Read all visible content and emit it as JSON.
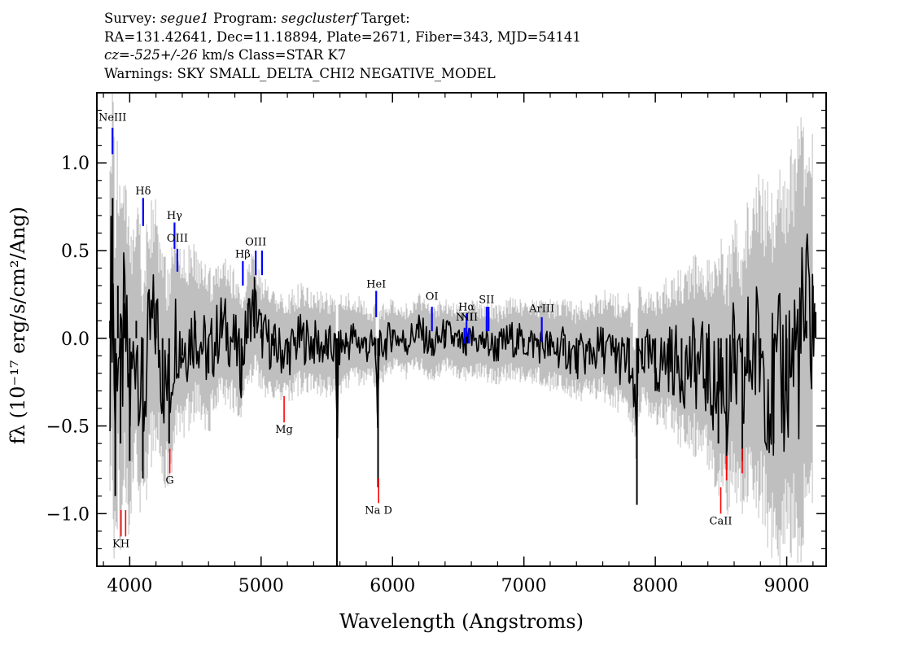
{
  "header": {
    "survey_label": "Survey:",
    "survey": "segue1",
    "program_label": "Program:",
    "program": "segclusterf",
    "target_label": "Target:",
    "line2": "RA=131.42641, Dec=11.18894, Plate=2671, Fiber=343, MJD=54141",
    "cz_label": "cz=",
    "cz_value": "-525+/-26",
    "cz_units": "km/s Class=STAR K7",
    "warnings": "Warnings: SKY SMALL_DELTA_CHI2 NEGATIVE_MODEL"
  },
  "chart_data": {
    "type": "line",
    "xlabel": "Wavelength (Angstroms)",
    "ylabel": "fλ (10⁻¹⁷ erg/s/cm²/Ang)",
    "xlim": [
      3750,
      9300
    ],
    "ylim": [
      -1.3,
      1.4
    ],
    "xticks": [
      4000,
      5000,
      6000,
      7000,
      8000,
      9000
    ],
    "xtick_labels": [
      "4000",
      "5000",
      "6000",
      "7000",
      "8000",
      "9000"
    ],
    "yticks": [
      1.0,
      0.5,
      0.0,
      -0.5,
      -1.0
    ],
    "ytick_labels": [
      "1.0",
      "0.5",
      "0.0",
      "−0.5",
      "−1.0"
    ],
    "grid": false,
    "series": [
      {
        "color": "#000000",
        "role": "flux",
        "x": [
          3850,
          3870,
          3890,
          3910,
          3930,
          3960,
          4000,
          4050,
          4100,
          4150,
          4200,
          4250,
          4300,
          4350,
          4400,
          4500,
          4600,
          4700,
          4800,
          4850,
          4900,
          4950,
          5000,
          5100,
          5200,
          5300,
          5400,
          5500,
          5570,
          5577,
          5590,
          5650,
          5700,
          5800,
          5870,
          5890,
          5900,
          5950,
          6000,
          6100,
          6200,
          6300,
          6400,
          6500,
          6560,
          6600,
          6700,
          6800,
          6900,
          7000,
          7100,
          7200,
          7300,
          7400,
          7500,
          7600,
          7700,
          7800,
          7860,
          7870,
          7900,
          8000,
          8100,
          8200,
          8300,
          8400,
          8480,
          8500,
          8542,
          8600,
          8662,
          8700,
          8800,
          8900,
          9000,
          9100,
          9150,
          9200,
          9220
        ],
        "y": [
          0.1,
          0.8,
          -0.9,
          0.3,
          -0.6,
          0.2,
          -0.7,
          0.1,
          -0.8,
          0.0,
          0.2,
          -0.4,
          -0.6,
          0.1,
          -0.1,
          0.1,
          -0.2,
          0.15,
          -0.05,
          -0.3,
          0.2,
          0.35,
          0.05,
          -0.1,
          -0.15,
          0.0,
          -0.05,
          -0.1,
          -0.1,
          -1.3,
          -0.1,
          -0.05,
          0.0,
          -0.08,
          -0.1,
          -0.85,
          -0.1,
          -0.05,
          0.05,
          -0.05,
          0.1,
          -0.1,
          0.05,
          -0.05,
          -0.1,
          0.0,
          -0.05,
          -0.1,
          0.0,
          -0.05,
          -0.05,
          -0.1,
          -0.1,
          -0.2,
          -0.15,
          -0.1,
          -0.2,
          -0.25,
          -0.95,
          -0.2,
          -0.15,
          -0.3,
          -0.2,
          -0.3,
          -0.25,
          -0.35,
          -0.6,
          -0.3,
          -0.75,
          -0.2,
          -0.7,
          -0.2,
          -0.1,
          -0.6,
          -0.3,
          -0.05,
          0.1,
          0.3,
          0.15
        ]
      },
      {
        "color": "#bfbfbf",
        "role": "error",
        "x": [
          3850,
          4000,
          4500,
          5000,
          5500,
          6000,
          6500,
          7000,
          7500,
          8000,
          8500,
          9000,
          9200
        ],
        "y": [
          1.3,
          0.9,
          0.5,
          0.35,
          0.3,
          0.22,
          0.22,
          0.24,
          0.3,
          0.4,
          0.7,
          1.2,
          1.4
        ]
      }
    ],
    "annotations": {
      "emission": [
        {
          "label": "NeIII",
          "x": 3869,
          "ymin": 1.05,
          "ymax": 1.2,
          "label_y": 1.24
        },
        {
          "label": "Hδ",
          "x": 4102,
          "ymin": 0.64,
          "ymax": 0.8,
          "label_y": 0.82
        },
        {
          "label": "Hγ",
          "x": 4341,
          "ymin": 0.51,
          "ymax": 0.66,
          "label_y": 0.68
        },
        {
          "label": "OIII",
          "x": 4363,
          "ymin": 0.38,
          "ymax": 0.51,
          "label_y": 0.55
        },
        {
          "label": "Hβ",
          "x": 4861,
          "ymin": 0.3,
          "ymax": 0.44,
          "label_y": 0.46
        },
        {
          "label": "OIII",
          "x": 4959,
          "ymin": 0.36,
          "ymax": 0.5,
          "label_y": 0.53
        },
        {
          "label": "",
          "x": 5007,
          "ymin": 0.36,
          "ymax": 0.5,
          "label_y": 0.53
        },
        {
          "label": "HeI",
          "x": 5876,
          "ymin": 0.12,
          "ymax": 0.27,
          "label_y": 0.29
        },
        {
          "label": "OI",
          "x": 6300,
          "ymin": 0.04,
          "ymax": 0.18,
          "label_y": 0.22
        },
        {
          "label": "NII",
          "x": 6548,
          "ymin": -0.03,
          "ymax": 0.06,
          "label_y": 0.1
        },
        {
          "label": "Hα",
          "x": 6563,
          "ymin": 0.01,
          "ymax": 0.14,
          "label_y": 0.16
        },
        {
          "label": "NII",
          "x": 6583,
          "ymin": -0.03,
          "ymax": 0.06,
          "label_y": 0.1
        },
        {
          "label": "SII",
          "x": 6716,
          "ymin": 0.04,
          "ymax": 0.18,
          "label_y": 0.2
        },
        {
          "label": "",
          "x": 6731,
          "ymin": 0.04,
          "ymax": 0.18,
          "label_y": 0.2
        },
        {
          "label": "ArIII",
          "x": 7136,
          "ymin": -0.02,
          "ymax": 0.12,
          "label_y": 0.15
        }
      ],
      "absorption": [
        {
          "label": "KH",
          "x": 3934,
          "ymin": -1.13,
          "ymax": -0.98,
          "label_y": -1.19
        },
        {
          "label": "",
          "x": 3969,
          "ymin": -1.13,
          "ymax": -0.98,
          "label_y": -1.19
        },
        {
          "label": "G",
          "x": 4305,
          "ymin": -0.77,
          "ymax": -0.63,
          "label_y": -0.83
        },
        {
          "label": "Mg",
          "x": 5175,
          "ymin": -0.48,
          "ymax": -0.33,
          "label_y": -0.54
        },
        {
          "label": "Na D",
          "x": 5894,
          "ymin": -0.94,
          "ymax": -0.8,
          "label_y": -1.0
        },
        {
          "label": "CaII",
          "x": 8498,
          "ymin": -1.0,
          "ymax": -0.85,
          "label_y": -1.06
        },
        {
          "label": "",
          "x": 8542,
          "ymin": -0.81,
          "ymax": -0.67,
          "label_y": -0.87
        },
        {
          "label": "",
          "x": 8662,
          "ymin": -0.77,
          "ymax": -0.63,
          "label_y": -0.83
        }
      ]
    }
  },
  "colors": {
    "flux": "#000000",
    "error": "#bfbfbf",
    "emission": "#0000ff",
    "absorption": "#ff0000",
    "axes": "#000000",
    "background": "#ffffff"
  }
}
